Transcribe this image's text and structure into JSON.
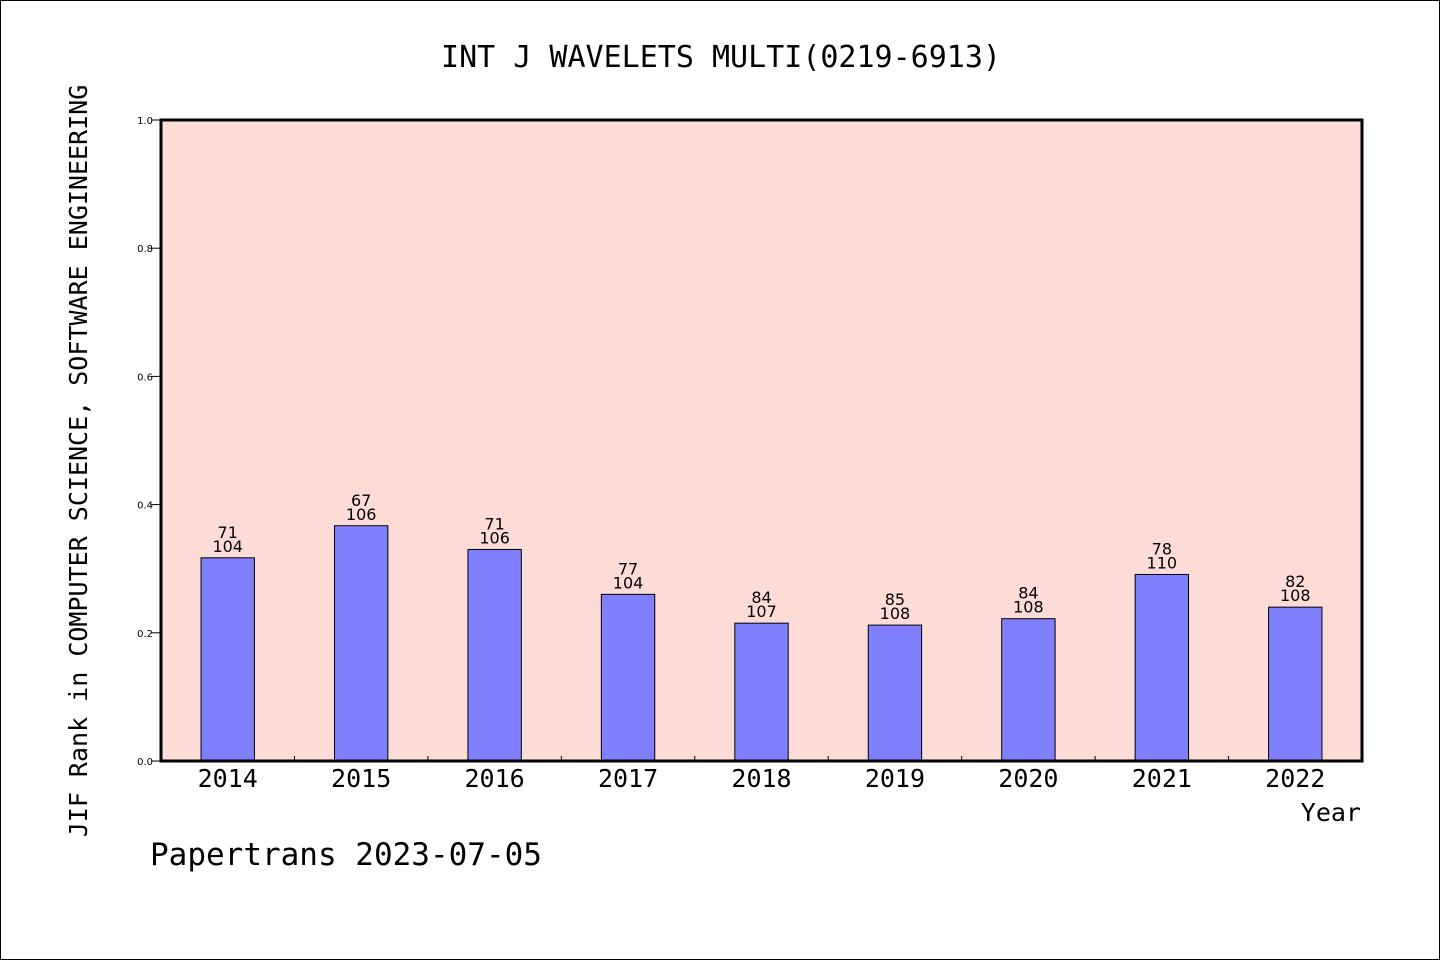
{
  "chart_data": {
    "type": "bar",
    "title": "INT J WAVELETS MULTI(0219-6913)",
    "xlabel": "Year",
    "ylabel": "JIF Rank in COMPUTER SCIENCE, SOFTWARE ENGINEERING",
    "ylim": [
      0,
      1.0
    ],
    "yticks": [
      "0.0",
      "0.2",
      "0.4",
      "0.6",
      "0.8",
      "1.0"
    ],
    "categories": [
      "2014",
      "2015",
      "2016",
      "2017",
      "2018",
      "2019",
      "2020",
      "2021",
      "2022"
    ],
    "values": [
      0.317,
      0.367,
      0.33,
      0.26,
      0.215,
      0.212,
      0.222,
      0.291,
      0.24
    ],
    "rank": [
      "71",
      "67",
      "71",
      "77",
      "84",
      "85",
      "84",
      "78",
      "82"
    ],
    "total": [
      "104",
      "106",
      "106",
      "104",
      "107",
      "108",
      "108",
      "110",
      "108"
    ],
    "grid": false,
    "colors": {
      "plot_background": "#fddcd8",
      "bar_fill": "#8080ff",
      "bar_stroke": "#000000"
    }
  },
  "footer": "Papertrans 2023-07-05"
}
